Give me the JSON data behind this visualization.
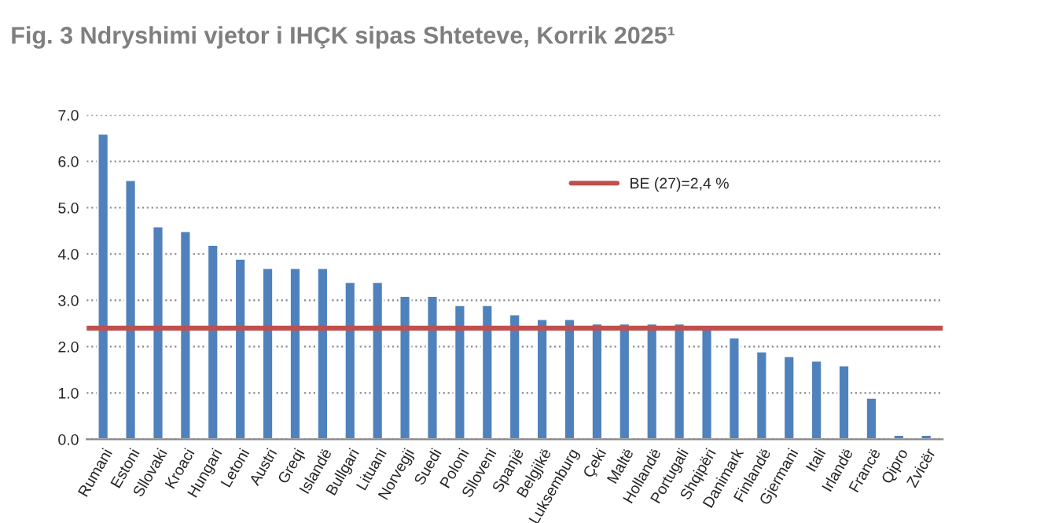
{
  "chart_data": {
    "type": "bar",
    "title": "Fig. 3 Ndryshimi vjetor i IHÇK sipas Shteteve, Korrik 2025¹",
    "categories": [
      "Rumani",
      "Estoni",
      "Sllovaki",
      "Kroaci",
      "Hungari",
      "Letoni",
      "Austri",
      "Greqi",
      "Islandë",
      "Bullgari",
      "Lituani",
      "Norvegji",
      "Suedi",
      "Poloni",
      "Slloveni",
      "Spanjë",
      "Belgjikë",
      "Luksemburg",
      "Çeki",
      "Maltë",
      "Hollandë",
      "Portugali",
      "Shqipëri",
      "Danimark",
      "Finlandë",
      "Gjermani",
      "Itali",
      "Irlandë",
      "Francë",
      "Qipro",
      "Zvicër"
    ],
    "values": [
      6.6,
      5.6,
      4.6,
      4.5,
      4.2,
      3.9,
      3.7,
      3.7,
      3.7,
      3.4,
      3.4,
      3.1,
      3.1,
      2.9,
      2.9,
      2.7,
      2.6,
      2.6,
      2.5,
      2.5,
      2.5,
      2.5,
      2.4,
      2.2,
      1.9,
      1.8,
      1.7,
      1.6,
      0.9,
      0.1,
      0.1
    ],
    "color": "#4f81bd",
    "ylim": [
      0,
      7
    ],
    "yticks": [
      {
        "value": 0,
        "label": "0.0"
      },
      {
        "value": 1,
        "label": "1.0"
      },
      {
        "value": 2,
        "label": "2.0"
      },
      {
        "value": 3,
        "label": "3.0"
      },
      {
        "value": 4,
        "label": "4.0"
      },
      {
        "value": 5,
        "label": "5.0"
      },
      {
        "value": 6,
        "label": "6.0"
      },
      {
        "value": 7,
        "label": "7.0"
      }
    ],
    "grid": "y",
    "ref_lines": [
      {
        "axis": "y",
        "value": 2.4,
        "label": "BE (27)=2,4 %",
        "color": "#c0504d"
      }
    ],
    "legend": "top right"
  }
}
